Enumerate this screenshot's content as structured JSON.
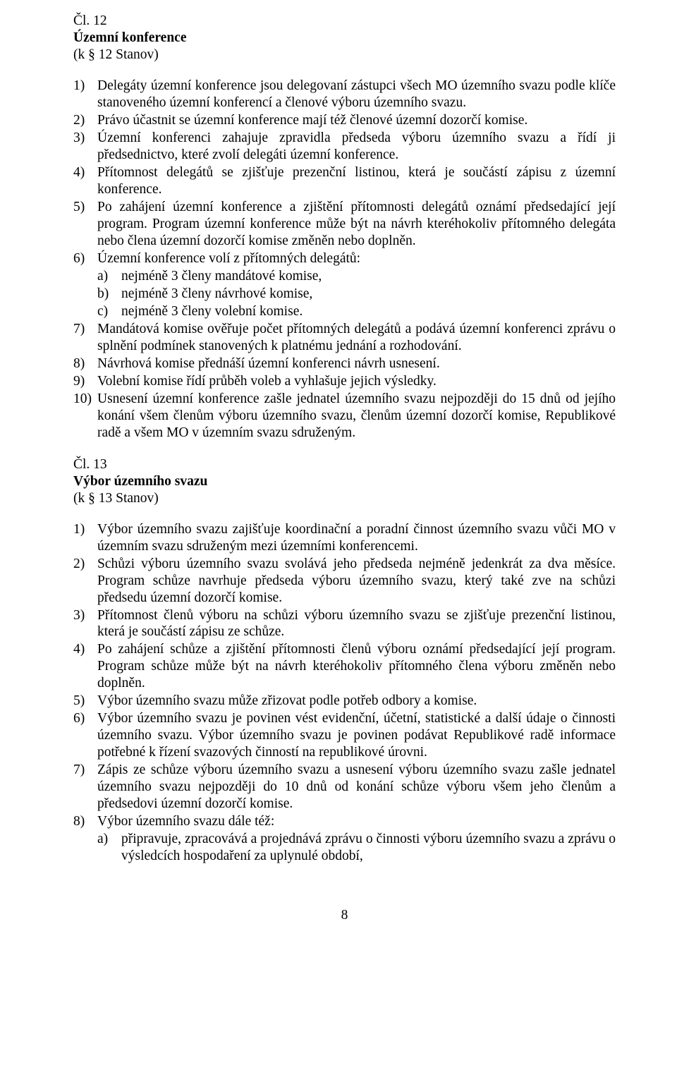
{
  "article12": {
    "heading_line1": "Čl. 12",
    "heading_line2": "Územní konference",
    "heading_line3": "(k § 12 Stanov)",
    "items": [
      {
        "n": "1)",
        "t": "Delegáty územní konference jsou delegovaní zástupci všech MO územního svazu podle klíče stanoveného územní konferencí a členové výboru územního svazu."
      },
      {
        "n": "2)",
        "t": "Právo účastnit se územní konference mají též členové územní dozorčí komise."
      },
      {
        "n": "3)",
        "t": "Územní konferenci zahajuje zpravidla předseda výboru územního svazu a řídí ji předsednictvo, které zvolí delegáti územní konference."
      },
      {
        "n": "4)",
        "t": "Přítomnost delegátů se zjišťuje prezenční listinou, která je součástí zápisu z územní konference."
      },
      {
        "n": "5)",
        "t": "Po zahájení územní konference a zjištění přítomnosti delegátů oznámí předsedající její program. Program územní konference může být na návrh kteréhokoliv přítomného delegáta nebo člena územní dozorčí komise změněn nebo doplněn."
      },
      {
        "n": "6)",
        "t": "Územní konference volí z přítomných delegátů:",
        "sub": [
          {
            "n": "a)",
            "t": "nejméně 3 členy mandátové komise,"
          },
          {
            "n": "b)",
            "t": "nejméně 3 členy návrhové komise,"
          },
          {
            "n": "c)",
            "t": "nejméně 3 členy volební komise."
          }
        ]
      },
      {
        "n": "7)",
        "t": "Mandátová komise ověřuje počet přítomných delegátů a podává územní konferenci zprávu o splnění podmínek stanovených k platnému jednání a rozhodování."
      },
      {
        "n": "8)",
        "t": "Návrhová komise přednáší územní konferenci návrh usnesení."
      },
      {
        "n": "9)",
        "t": "Volební komise řídí průběh voleb a vyhlašuje jejich výsledky."
      },
      {
        "n": "10)",
        "t": "Usnesení územní konference zašle jednatel územního svazu nejpozději do 15 dnů od jejího konání všem členům výboru územního svazu, členům územní dozorčí komise, Republikové radě a všem MO v územním svazu sdruženým."
      }
    ]
  },
  "article13": {
    "heading_line1": "Čl. 13",
    "heading_line2": "Výbor územního svazu",
    "heading_line3": "(k § 13 Stanov)",
    "items": [
      {
        "n": "1)",
        "t": "Výbor územního svazu zajišťuje koordinační a poradní činnost územního svazu vůči MO v územním svazu sdruženým mezi územními konferencemi."
      },
      {
        "n": "2)",
        "t": "Schůzi výboru územního svazu svolává jeho předseda nejméně jedenkrát za dva měsíce. Program schůze navrhuje předseda výboru územního svazu, který také zve na schůzi předsedu územní dozorčí komise."
      },
      {
        "n": "3)",
        "t": "Přítomnost členů výboru na schůzi výboru územního svazu se zjišťuje prezenční listinou, která je součástí zápisu ze schůze."
      },
      {
        "n": "4)",
        "t": "Po zahájení schůze a zjištění přítomnosti členů výboru oznámí předsedající její program. Program schůze může být na návrh kteréhokoliv přítomného člena výboru změněn nebo doplněn."
      },
      {
        "n": "5)",
        "t": "Výbor územního svazu může zřizovat podle potřeb odbory a komise."
      },
      {
        "n": "6)",
        "t": "Výbor územního svazu je povinen vést evidenční, účetní, statistické a další údaje o činnosti územního svazu. Výbor územního svazu je povinen podávat Republikové radě informace potřebné k řízení svazových činností na republikové úrovni."
      },
      {
        "n": "7)",
        "t": "Zápis ze schůze výboru územního svazu a usnesení výboru územního svazu zašle jednatel územního svazu nejpozději do 10 dnů od konání schůze výboru všem jeho členům a předsedovi územní dozorčí komise."
      },
      {
        "n": "8)",
        "t": "Výbor územního svazu dále též:",
        "sub": [
          {
            "n": "a)",
            "t": "připravuje, zpracovává a projednává zprávu o činnosti výboru územního svazu a zprávu o výsledcích hospodaření za uplynulé období,"
          }
        ]
      }
    ]
  },
  "page_number": "8"
}
